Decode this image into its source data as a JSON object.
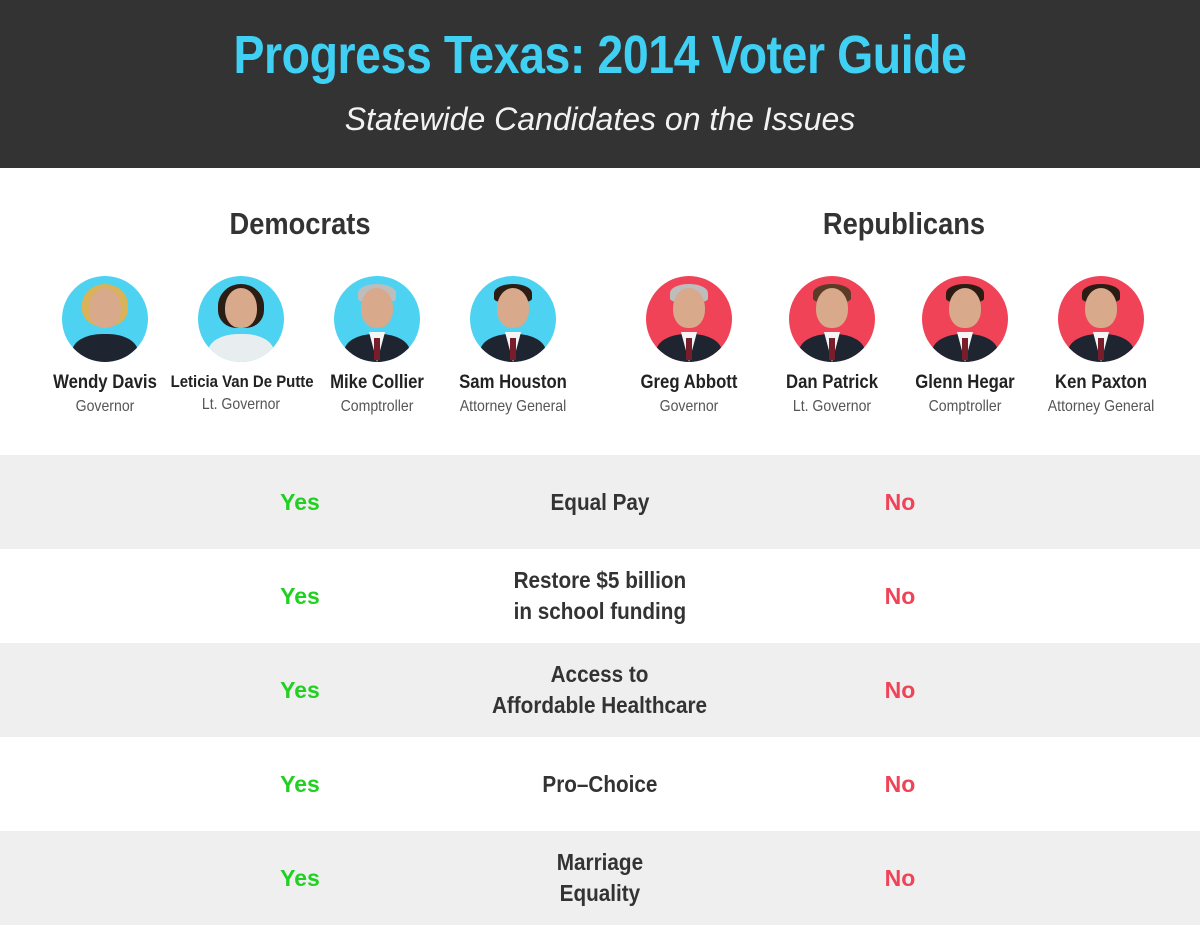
{
  "header": {
    "title": "Progress Texas: 2014 Voter Guide",
    "subtitle": "Statewide Candidates on the Issues"
  },
  "parties": {
    "democrats": {
      "label": "Democrats",
      "color": "#4dd2f2",
      "candidates": [
        {
          "name": "Wendy Davis",
          "role": "Governor"
        },
        {
          "name": "Leticia Van De Putte",
          "role": "Lt. Governor"
        },
        {
          "name": "Mike Collier",
          "role": "Comptroller"
        },
        {
          "name": "Sam Houston",
          "role": "Attorney General"
        }
      ]
    },
    "republicans": {
      "label": "Republicans",
      "color": "#f04358",
      "candidates": [
        {
          "name": "Greg Abbott",
          "role": "Governor"
        },
        {
          "name": "Dan Patrick",
          "role": "Lt. Governor"
        },
        {
          "name": "Glenn Hegar",
          "role": "Comptroller"
        },
        {
          "name": "Ken Paxton",
          "role": "Attorney General"
        }
      ]
    }
  },
  "issues": [
    {
      "issue": "Equal Pay",
      "democrats": "Yes",
      "republicans": "No"
    },
    {
      "issue": "Restore $5 billion\nin school funding",
      "democrats": "Yes",
      "republicans": "No"
    },
    {
      "issue": "Access to\nAffordable Healthcare",
      "democrats": "Yes",
      "republicans": "No"
    },
    {
      "issue": "Pro–Choice",
      "democrats": "Yes",
      "republicans": "No"
    },
    {
      "issue": "Marriage\nEquality",
      "democrats": "Yes",
      "republicans": "No"
    }
  ],
  "colors": {
    "header_bg": "#333333",
    "title": "#3fd0f4",
    "yes": "#22d022",
    "no": "#f04358"
  }
}
